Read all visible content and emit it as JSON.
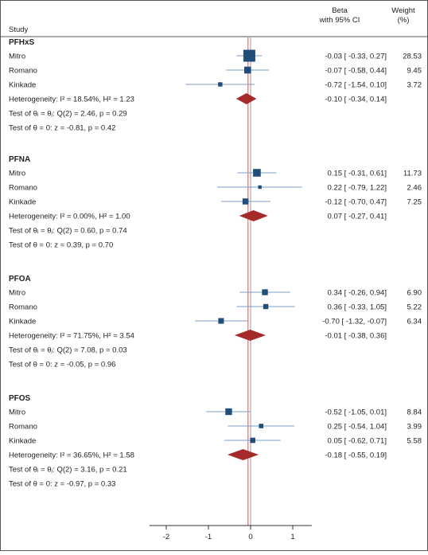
{
  "chart_data": {
    "type": "forest",
    "header": {
      "study": "Study",
      "beta_line1": "Beta",
      "beta_line2": "with 95% CI",
      "weight_line1": "Weight",
      "weight_line2": "(%)"
    },
    "x_ticks": [
      -2,
      -1,
      0,
      1
    ],
    "x_range": [
      -2.4,
      1.45
    ],
    "groups": [
      {
        "name": "PFHxS",
        "studies": [
          {
            "name": "Mitro",
            "beta": -0.03,
            "lo": -0.33,
            "hi": 0.27,
            "weight": 28.53,
            "ci_text": "-0.03 [ -0.33,  0.27]",
            "weight_text": "28.53"
          },
          {
            "name": "Romano",
            "beta": -0.07,
            "lo": -0.58,
            "hi": 0.44,
            "weight": 9.45,
            "ci_text": "-0.07 [ -0.58,  0.44]",
            "weight_text": "9.45"
          },
          {
            "name": "Kinkade",
            "beta": -0.72,
            "lo": -1.54,
            "hi": 0.1,
            "weight": 3.72,
            "ci_text": "-0.72 [ -1.54,  0.10]",
            "weight_text": "3.72"
          }
        ],
        "overall": {
          "beta": -0.1,
          "lo": -0.34,
          "hi": 0.14,
          "ci_text": "-0.10 [ -0.34,  0.14]"
        },
        "heterogeneity": "Heterogeneity: I² = 18.54%, H² = 1.23",
        "test_equal": "Test of θᵢ = θⱼ: Q(2) = 2.46, p = 0.29",
        "test_zero": "Test of θ = 0: z = -0.81, p = 0.42"
      },
      {
        "name": "PFNA",
        "studies": [
          {
            "name": "Mitro",
            "beta": 0.15,
            "lo": -0.31,
            "hi": 0.61,
            "weight": 11.73,
            "ci_text": "0.15 [ -0.31,  0.61]",
            "weight_text": "11.73"
          },
          {
            "name": "Romano",
            "beta": 0.22,
            "lo": -0.79,
            "hi": 1.22,
            "weight": 2.46,
            "ci_text": "0.22 [ -0.79,  1.22]",
            "weight_text": "2.46"
          },
          {
            "name": "Kinkade",
            "beta": -0.12,
            "lo": -0.7,
            "hi": 0.47,
            "weight": 7.25,
            "ci_text": "-0.12 [ -0.70,  0.47]",
            "weight_text": "7.25"
          }
        ],
        "overall": {
          "beta": 0.07,
          "lo": -0.27,
          "hi": 0.41,
          "ci_text": "0.07 [ -0.27,  0.41]"
        },
        "heterogeneity": "Heterogeneity: I² = 0.00%, H² = 1.00",
        "test_equal": "Test of θᵢ = θⱼ: Q(2) = 0.60, p = 0.74",
        "test_zero": "Test of θ = 0: z = 0.39, p = 0.70"
      },
      {
        "name": "PFOA",
        "studies": [
          {
            "name": "Mitro",
            "beta": 0.34,
            "lo": -0.26,
            "hi": 0.94,
            "weight": 6.9,
            "ci_text": "0.34 [ -0.26,  0.94]",
            "weight_text": "6.90"
          },
          {
            "name": "Romano",
            "beta": 0.36,
            "lo": -0.33,
            "hi": 1.05,
            "weight": 5.22,
            "ci_text": "0.36 [ -0.33,  1.05]",
            "weight_text": "5.22"
          },
          {
            "name": "Kinkade",
            "beta": -0.7,
            "lo": -1.32,
            "hi": -0.07,
            "weight": 6.34,
            "ci_text": "-0.70 [ -1.32, -0.07]",
            "weight_text": "6.34"
          }
        ],
        "overall": {
          "beta": -0.01,
          "lo": -0.38,
          "hi": 0.36,
          "ci_text": "-0.01 [ -0.38,  0.36]"
        },
        "heterogeneity": "Heterogeneity: I² = 71.75%, H² = 3.54",
        "test_equal": "Test of θᵢ = θⱼ: Q(2) = 7.08, p = 0.03",
        "test_zero": "Test of θ = 0: z = -0.05, p = 0.96"
      },
      {
        "name": "PFOS",
        "studies": [
          {
            "name": "Mitro",
            "beta": -0.52,
            "lo": -1.05,
            "hi": 0.01,
            "weight": 8.84,
            "ci_text": "-0.52 [ -1.05,  0.01]",
            "weight_text": "8.84"
          },
          {
            "name": "Romano",
            "beta": 0.25,
            "lo": -0.54,
            "hi": 1.04,
            "weight": 3.99,
            "ci_text": "0.25 [ -0.54,  1.04]",
            "weight_text": "3.99"
          },
          {
            "name": "Kinkade",
            "beta": 0.05,
            "lo": -0.62,
            "hi": 0.71,
            "weight": 5.58,
            "ci_text": "0.05 [ -0.62,  0.71]",
            "weight_text": "5.58"
          }
        ],
        "overall": {
          "beta": -0.18,
          "lo": -0.55,
          "hi": 0.19,
          "ci_text": "-0.18 [ -0.55,  0.19]"
        },
        "heterogeneity": "Heterogeneity: I² = 36.65%, H² = 1.58",
        "test_equal": "Test of θᵢ = θⱼ: Q(2) = 3.16, p = 0.21",
        "test_zero": "Test of θ = 0: z = -0.97, p = 0.33"
      }
    ],
    "colors": {
      "marker": "#1f4e79",
      "ci_line": "#7f9fc4",
      "diamond": "#a52a2a",
      "null_line": "#999999",
      "overall_line": "#e05050",
      "frame": "#555555"
    }
  }
}
